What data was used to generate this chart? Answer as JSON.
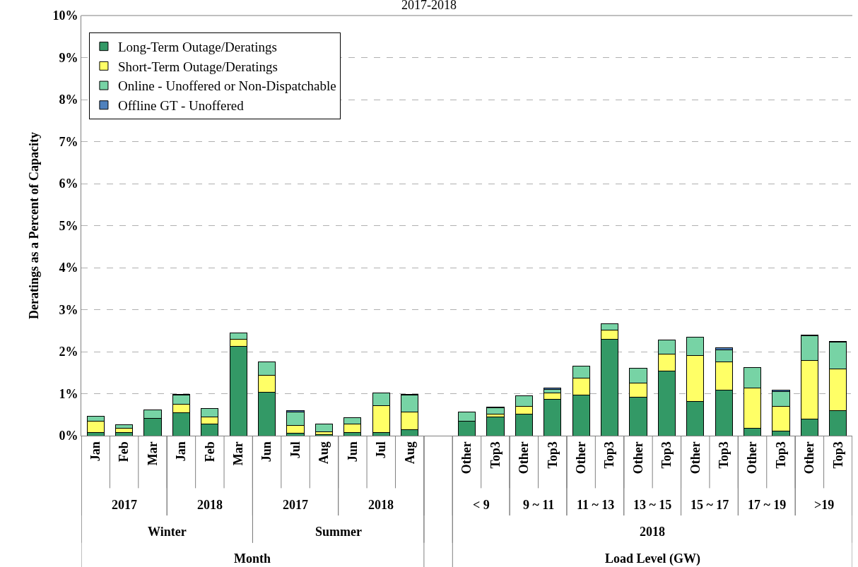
{
  "chart_data": {
    "type": "bar",
    "stacked": true,
    "title": "2017-2018",
    "ylabel": "Deratings as a Percent of Capacity",
    "categories": [
      "Jan",
      "Feb",
      "Mar",
      "Jan",
      "Feb",
      "Mar",
      "Jun",
      "Jul",
      "Aug",
      "Jun",
      "Jul",
      "Aug",
      null,
      "Other",
      "Top3",
      "Other",
      "Top3",
      "Other",
      "Top3",
      "Other",
      "Top3",
      "Other",
      "Top3",
      "Other",
      "Top3",
      "Other",
      "Top3"
    ],
    "series": [
      {
        "name": "Long-Term Outage/Deratings",
        "color": "#339966",
        "values": [
          0.07,
          0.07,
          0.42,
          0.55,
          0.27,
          2.13,
          1.03,
          0.06,
          0.02,
          0.07,
          0.07,
          0.14,
          null,
          0.35,
          0.44,
          0.51,
          0.87,
          0.96,
          2.3,
          0.91,
          1.54,
          0.81,
          1.08,
          0.17,
          0.11,
          0.39,
          0.59
        ]
      },
      {
        "name": "Short-Term Outage/Deratings",
        "color": "#ffff66",
        "values": [
          0.28,
          0.1,
          null,
          0.2,
          0.18,
          0.16,
          0.4,
          0.19,
          0.07,
          0.21,
          0.65,
          0.42,
          null,
          null,
          0.08,
          0.19,
          0.14,
          0.41,
          0.21,
          0.34,
          0.4,
          1.1,
          0.67,
          0.97,
          0.59,
          1.4,
          0.99
        ]
      },
      {
        "name": "Online - Unoffered or Non-Dispatchable",
        "color": "#77d3a5",
        "values": [
          0.11,
          0.09,
          0.19,
          0.22,
          0.2,
          0.16,
          0.33,
          0.32,
          0.18,
          0.15,
          0.29,
          0.4,
          null,
          0.22,
          0.14,
          0.25,
          0.09,
          0.28,
          0.16,
          0.35,
          0.34,
          0.43,
          0.29,
          0.48,
          0.35,
          0.58,
          0.65
        ]
      },
      {
        "name": "Offline GT - Unoffered",
        "color": "#4f81bd",
        "values": [
          null,
          null,
          null,
          0.02,
          null,
          null,
          null,
          0.02,
          null,
          null,
          null,
          0.02,
          null,
          null,
          0.02,
          null,
          0.03,
          null,
          null,
          null,
          null,
          null,
          0.05,
          null,
          0.03,
          0.02,
          0.02
        ]
      }
    ],
    "ylim": [
      0,
      10
    ],
    "yticks": [
      {
        "value": 0,
        "label": "0%"
      },
      {
        "value": 1,
        "label": "1%"
      },
      {
        "value": 2,
        "label": "2%"
      },
      {
        "value": 3,
        "label": "3%"
      },
      {
        "value": 4,
        "label": "4%"
      },
      {
        "value": 5,
        "label": "5%"
      },
      {
        "value": 6,
        "label": "6%"
      },
      {
        "value": 7,
        "label": "7%"
      },
      {
        "value": 8,
        "label": "8%"
      },
      {
        "value": 9,
        "label": "9%"
      },
      {
        "value": 10,
        "label": "10%"
      }
    ],
    "grid": "y",
    "legend": "top left",
    "annotations": [
      "2017",
      "2018",
      "2017",
      "2018",
      "< 9",
      "9 ~ 11",
      "11 ~ 13",
      "13 ~ 15",
      "15 ~ 17",
      "17 ~ 19",
      ">19",
      "Winter",
      "Summer",
      "2018",
      "Month",
      "Load Level (GW)"
    ]
  }
}
